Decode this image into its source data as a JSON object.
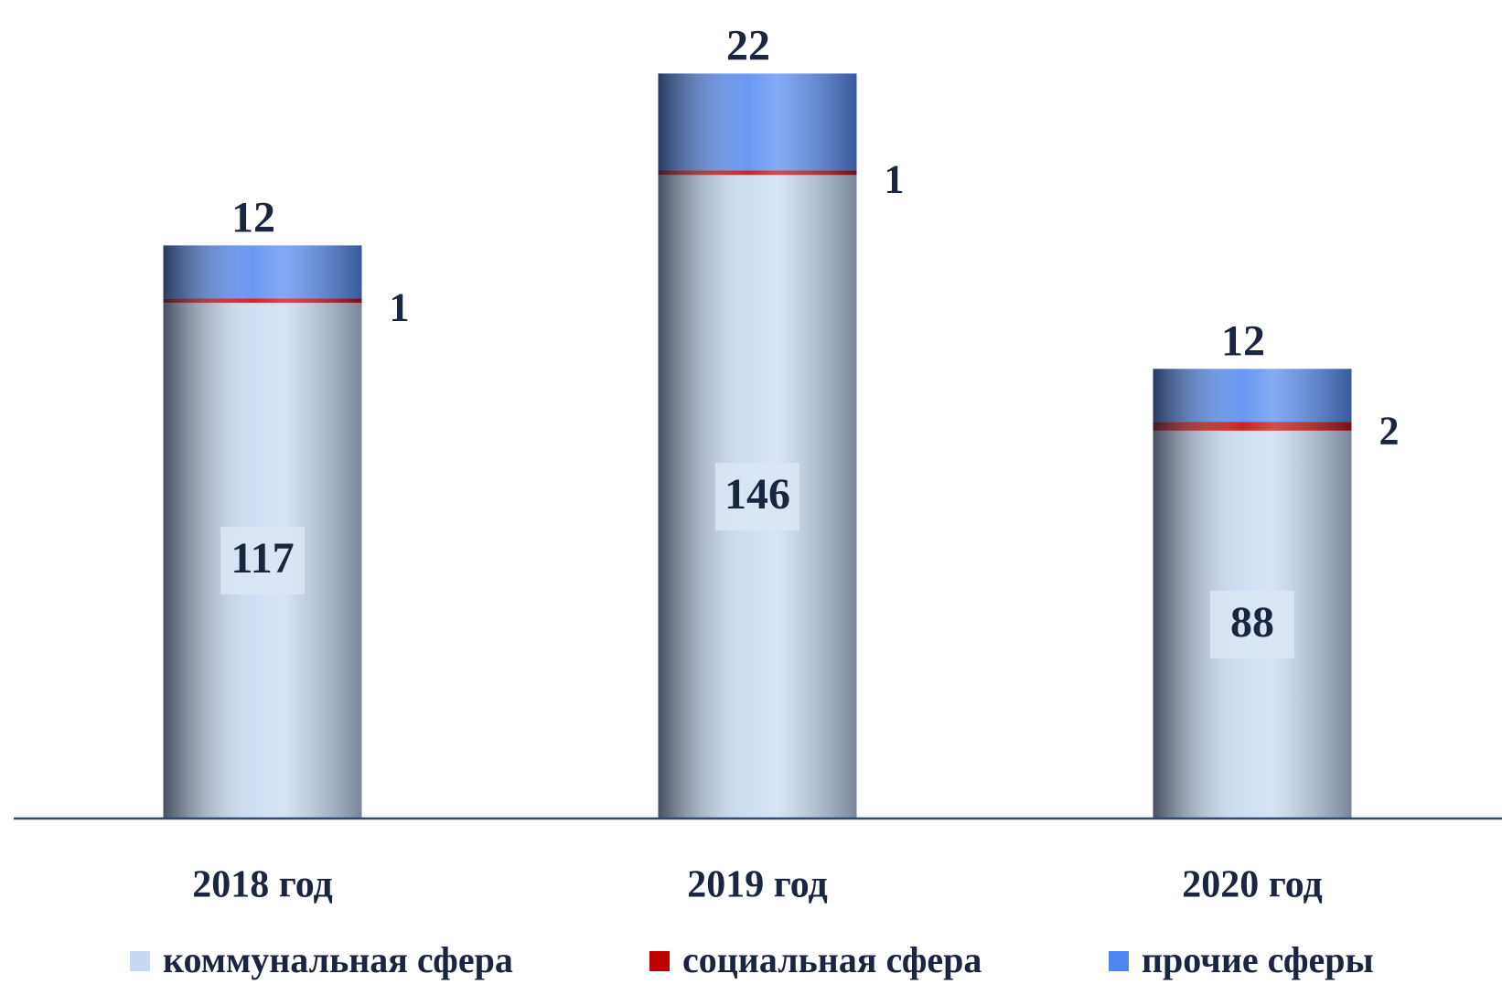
{
  "chart_data": {
    "type": "stacked_bar",
    "categories": [
      "2018 год",
      "2019 год",
      "2020 год"
    ],
    "series": [
      {
        "name": "коммунальная сфера",
        "color": "#c6d9f1",
        "values": [
          117,
          146,
          88
        ]
      },
      {
        "name": "социальная сфера",
        "color": "#c00000",
        "values": [
          1,
          1,
          2
        ]
      },
      {
        "name": "прочие сферы",
        "color": "#4f86f0",
        "values": [
          12,
          22,
          12
        ]
      }
    ],
    "legend": "bottom"
  }
}
